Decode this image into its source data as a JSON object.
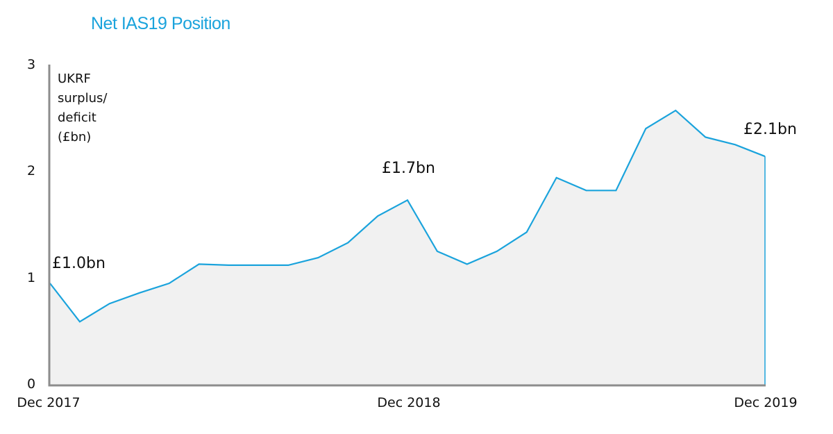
{
  "chart_data": {
    "type": "area",
    "title": "Net IAS19 Position",
    "ylabel": "UKRF surplus/ deficit (£bn)",
    "ylabel_lines": [
      "UKRF",
      "surplus/",
      "deficit",
      "(£bn)"
    ],
    "xlabel": "",
    "ylim": [
      0,
      3
    ],
    "yticks": [
      "0",
      "1",
      "2",
      "3"
    ],
    "xtick_labels": [
      "Dec 2017",
      "Dec 2018",
      "Dec 2019"
    ],
    "grid": false,
    "legend": null,
    "series": [
      {
        "name": "UKRF surplus/deficit",
        "color": "#1aa3dc",
        "fill": "#f1f1f1",
        "x": [
          "Dec 2017",
          "Jan 2018",
          "Feb 2018",
          "Mar 2018",
          "Apr 2018",
          "May 2018",
          "Jun 2018",
          "Jul 2018",
          "Aug 2018",
          "Sep 2018",
          "Oct 2018",
          "Nov 2018",
          "Dec 2018",
          "Jan 2019",
          "Feb 2019",
          "Mar 2019",
          "Apr 2019",
          "May 2019",
          "Jun 2019",
          "Jul 2019",
          "Aug 2019",
          "Sep 2019",
          "Oct 2019",
          "Nov 2019",
          "Dec 2019"
        ],
        "values": [
          0.95,
          0.59,
          0.76,
          0.86,
          0.95,
          1.13,
          1.12,
          1.12,
          1.12,
          1.19,
          1.33,
          1.58,
          1.73,
          1.25,
          1.13,
          1.25,
          1.43,
          1.94,
          1.82,
          1.82,
          2.4,
          2.57,
          2.32,
          2.25,
          2.14
        ]
      }
    ],
    "annotations": [
      {
        "text": "£1.0bn",
        "at": "Dec 2017"
      },
      {
        "text": "£1.7bn",
        "at": "Dec 2018"
      },
      {
        "text": "£2.1bn",
        "at": "Dec 2019"
      }
    ]
  },
  "colors": {
    "title": "#1aa3dc",
    "line": "#1aa3dc",
    "fill": "#f1f1f1",
    "axis": "#8c8c8c"
  }
}
